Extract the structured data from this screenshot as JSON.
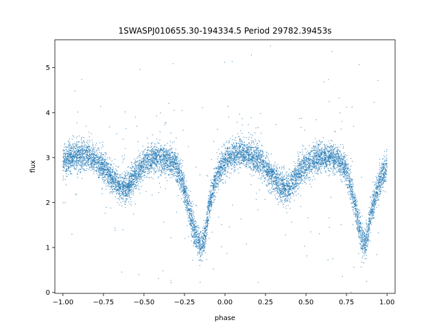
{
  "chart_data": {
    "type": "scatter",
    "title": "1SWASPJ010655.30-194334.5 Period 29782.39453s",
    "xlabel": "phase",
    "ylabel": "flux",
    "xlim": [
      -1.05,
      1.05
    ],
    "ylim": [
      -0.02,
      5.62
    ],
    "x_ticks": [
      -1.0,
      -0.75,
      -0.5,
      -0.25,
      0.0,
      0.25,
      0.5,
      0.75,
      1.0
    ],
    "x_tick_labels": [
      "−1.00",
      "−0.75",
      "−0.50",
      "−0.25",
      "0.00",
      "0.25",
      "0.50",
      "0.75",
      "1.00"
    ],
    "y_ticks": [
      0,
      1,
      2,
      3,
      4,
      5
    ],
    "y_tick_labels": [
      "0",
      "1",
      "2",
      "3",
      "4",
      "5"
    ],
    "grid": false,
    "point_color": "#1f77b4",
    "series": [
      {
        "x": [
          -1.0,
          -0.95,
          -0.9,
          -0.85,
          -0.8,
          -0.75,
          -0.7,
          -0.65,
          -0.62,
          -0.6,
          -0.55,
          -0.5,
          -0.45,
          -0.4,
          -0.35,
          -0.3,
          -0.25,
          -0.2,
          -0.17,
          -0.15,
          -0.14,
          -0.12,
          -0.1,
          -0.05,
          0.0,
          0.05,
          0.1,
          0.15,
          0.2,
          0.25,
          0.3,
          0.35,
          0.38,
          0.4,
          0.45,
          0.5,
          0.55,
          0.6,
          0.65,
          0.7,
          0.75,
          0.8,
          0.83,
          0.85,
          0.86,
          0.88,
          0.9,
          0.95,
          1.0
        ],
        "y": [
          2.9,
          3.0,
          3.05,
          3.05,
          2.95,
          2.8,
          2.55,
          2.35,
          2.3,
          2.35,
          2.65,
          2.85,
          2.95,
          3.0,
          2.95,
          2.8,
          2.3,
          1.5,
          1.15,
          1.05,
          1.05,
          1.3,
          1.9,
          2.6,
          2.95,
          3.05,
          3.1,
          3.05,
          2.95,
          2.8,
          2.55,
          2.35,
          2.3,
          2.35,
          2.65,
          2.85,
          2.95,
          3.0,
          3.0,
          2.95,
          2.7,
          2.05,
          1.4,
          1.1,
          1.05,
          1.25,
          1.75,
          2.4,
          2.85
        ]
      }
    ]
  }
}
